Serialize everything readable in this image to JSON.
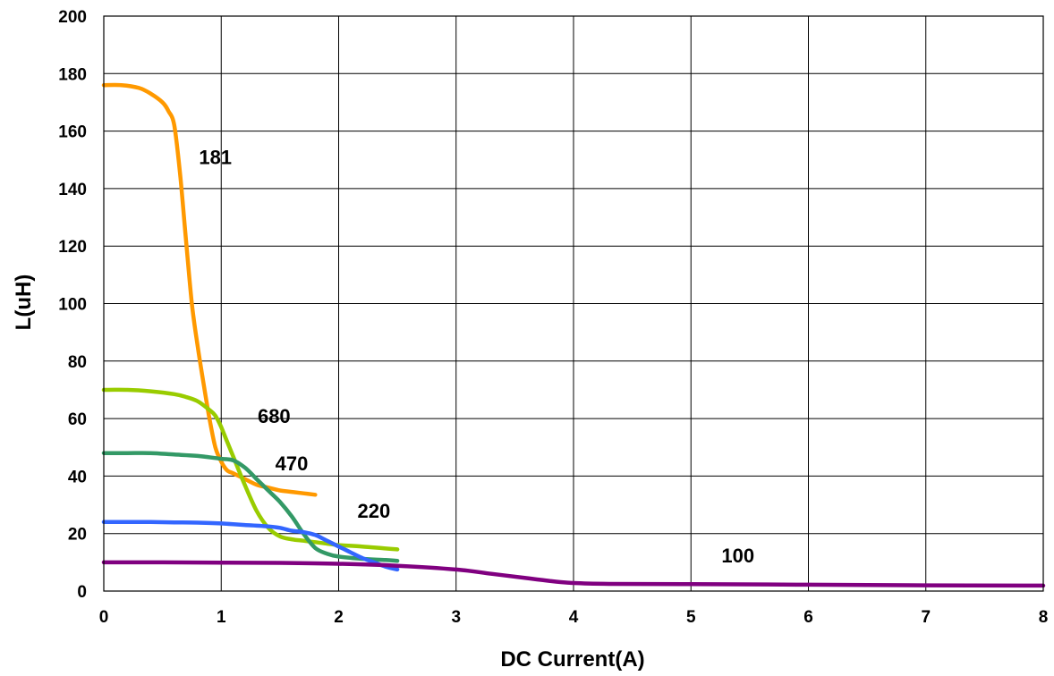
{
  "chart_data": {
    "type": "line",
    "xlabel": "DC Current(A)",
    "ylabel": "L(uH)",
    "xlim": [
      0,
      8
    ],
    "ylim": [
      0,
      200
    ],
    "xticks": [
      "0",
      "1",
      "2",
      "3",
      "4",
      "5",
      "6",
      "7",
      "8"
    ],
    "yticks": [
      "0",
      "20",
      "40",
      "60",
      "80",
      "100",
      "120",
      "140",
      "160",
      "180",
      "200"
    ],
    "grid": true,
    "legend": "none",
    "series": [
      {
        "name": "181",
        "color": "#FF9900",
        "x": [
          0,
          0.15,
          0.3,
          0.4,
          0.5,
          0.55,
          0.6,
          0.65,
          0.7,
          0.75,
          0.8,
          0.85,
          0.9,
          0.95,
          1.0,
          1.05,
          1.1,
          1.2,
          1.3,
          1.4,
          1.5,
          1.6,
          1.7,
          1.8
        ],
        "y": [
          176,
          176,
          175,
          173,
          170,
          167,
          162,
          145,
          122,
          100,
          85,
          72,
          60,
          50,
          45,
          42,
          41,
          39,
          37,
          36,
          35,
          34.5,
          34,
          33.5
        ]
      },
      {
        "name": "680",
        "color": "#99CC00",
        "x": [
          0,
          0.2,
          0.4,
          0.6,
          0.7,
          0.8,
          0.9,
          0.95,
          1.0,
          1.05,
          1.1,
          1.2,
          1.3,
          1.4,
          1.5,
          1.6,
          1.7,
          1.8,
          1.9,
          2.0,
          2.2,
          2.4,
          2.5
        ],
        "y": [
          70,
          70,
          69.5,
          68.5,
          67.5,
          66,
          63,
          61,
          57,
          52,
          47,
          37,
          28,
          22,
          19,
          18,
          17.5,
          17,
          16.5,
          16,
          15.5,
          14.8,
          14.5
        ]
      },
      {
        "name": "470",
        "color": "#339966",
        "x": [
          0,
          0.2,
          0.4,
          0.6,
          0.8,
          1.0,
          1.1,
          1.2,
          1.3,
          1.4,
          1.5,
          1.6,
          1.7,
          1.8,
          1.9,
          2.0,
          2.2,
          2.4,
          2.5
        ],
        "y": [
          48,
          48,
          48,
          47.5,
          47,
          46,
          45.5,
          43,
          39,
          35,
          31,
          26,
          20,
          15,
          13,
          12,
          11.2,
          10.8,
          10.5
        ]
      },
      {
        "name": "220",
        "color": "#3366FF",
        "x": [
          0,
          0.2,
          0.4,
          0.6,
          0.8,
          1.0,
          1.2,
          1.4,
          1.5,
          1.6,
          1.7,
          1.8,
          1.9,
          2.0,
          2.1,
          2.2,
          2.3,
          2.4,
          2.5
        ],
        "y": [
          24,
          24,
          24,
          23.9,
          23.8,
          23.5,
          23,
          22.5,
          22,
          21,
          20.5,
          19.5,
          17.5,
          15.5,
          13.5,
          11.5,
          10,
          8.5,
          7.5
        ]
      },
      {
        "name": "100",
        "color": "#800080",
        "x": [
          0,
          0.5,
          1,
          1.5,
          2,
          2.5,
          3,
          3.3,
          3.6,
          3.8,
          4,
          4.3,
          5,
          6,
          7,
          8
        ],
        "y": [
          10,
          10,
          9.9,
          9.8,
          9.5,
          8.8,
          7.5,
          6,
          4.5,
          3.5,
          2.8,
          2.5,
          2.4,
          2.2,
          2.0,
          1.9
        ]
      }
    ],
    "annotations": [
      {
        "text": "181",
        "x": 0.95,
        "y": 148.5
      },
      {
        "text": "680",
        "x": 1.45,
        "y": 58.5
      },
      {
        "text": "470",
        "x": 1.6,
        "y": 42
      },
      {
        "text": "220",
        "x": 2.3,
        "y": 25.5
      },
      {
        "text": "100",
        "x": 5.4,
        "y": 10
      }
    ]
  }
}
